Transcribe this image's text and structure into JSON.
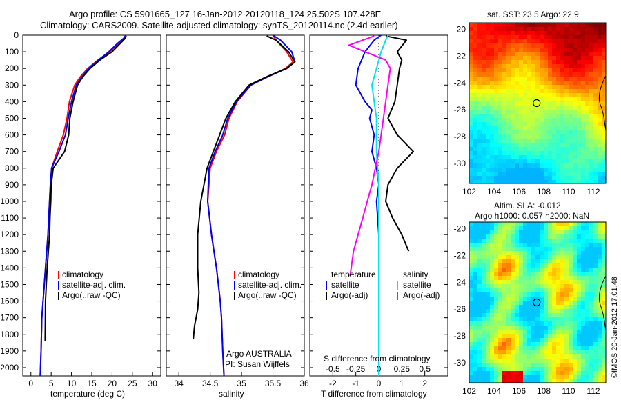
{
  "header": {
    "line1": "Argo profile: CS 5901665_127 16-Jan-2012 20120118_124 25.502S 107.428E",
    "line2": "Climatology: CARS2009. Satellite-adjusted climatology: synTS_20120114.nc (2.4d earlier)"
  },
  "side_stamp": "©IMOS 20-Jan-2012 17:01:48",
  "colors": {
    "clim": "#ff0000",
    "sat": "#0000ff",
    "argo": "#000000",
    "sat_s": "#00e5ee",
    "argo_s": "#ff00ff"
  },
  "chart_data": [
    {
      "type": "line",
      "xlabel": "temperature (deg C)",
      "xlim": [
        -2,
        32
      ],
      "xticks": [
        "0",
        "5",
        "10",
        "15",
        "20",
        "25",
        "30"
      ],
      "ylim": [
        0,
        2050
      ],
      "yticks": [
        "0",
        "100",
        "200",
        "300",
        "400",
        "500",
        "600",
        "700",
        "800",
        "900",
        "1000",
        "1100",
        "1200",
        "1300",
        "1400",
        "1500",
        "1600",
        "1700",
        "1800",
        "1900",
        "2000"
      ],
      "y_reversed": true,
      "legend": [
        "climatology",
        "satellite-adj. clim.",
        "Argo(..raw -QC)"
      ],
      "series": [
        {
          "name": "climatology",
          "x": [
            23.3,
            23.0,
            21.6,
            19.4,
            16.5,
            14.0,
            12.2,
            10.8,
            9.5,
            8.9,
            8.0,
            6.5,
            5.1,
            4.8,
            4.6,
            4.4,
            4.2,
            3.9,
            3.6,
            3.3,
            3.0,
            2.7,
            2.5,
            2.3
          ],
          "y": [
            0,
            20,
            50,
            100,
            150,
            200,
            250,
            300,
            400,
            500,
            600,
            700,
            800,
            900,
            1000,
            1100,
            1200,
            1300,
            1400,
            1500,
            1600,
            1700,
            1900,
            2050
          ]
        },
        {
          "name": "satellite-adj. clim.",
          "x": [
            23.4,
            22.8,
            21.3,
            19.2,
            16.6,
            14.3,
            12.6,
            11.2,
            10.0,
            9.2,
            8.5,
            6.9,
            5.1,
            4.8,
            4.6,
            4.4,
            4.2,
            3.9,
            3.6,
            3.3,
            3.0,
            2.7,
            2.5,
            2.3
          ],
          "y": [
            0,
            20,
            50,
            100,
            150,
            200,
            250,
            300,
            400,
            500,
            600,
            700,
            800,
            900,
            1000,
            1100,
            1200,
            1300,
            1400,
            1500,
            1600,
            1700,
            1900,
            2050
          ]
        },
        {
          "name": "Argo(..raw -QC)",
          "x": [
            23.5,
            23.2,
            22.0,
            20.0,
            17.0,
            14.6,
            12.8,
            11.5,
            10.4,
            9.6,
            9.3,
            8.3,
            5.5,
            5.0,
            4.9,
            4.7,
            4.6,
            4.3,
            4.0,
            3.8,
            3.6,
            3.5
          ],
          "y": [
            5,
            20,
            50,
            100,
            150,
            200,
            250,
            300,
            400,
            500,
            600,
            700,
            800,
            900,
            1000,
            1100,
            1200,
            1300,
            1400,
            1500,
            1600,
            1840
          ]
        }
      ]
    },
    {
      "type": "line",
      "xlabel": "salinity",
      "xlim": [
        33.8,
        36.0
      ],
      "xticks": [
        "34",
        "34.5",
        "35",
        "35.5",
        "36"
      ],
      "ylim": [
        0,
        2050
      ],
      "y_reversed": true,
      "legend": [
        "climatology",
        "satellite-adj. clim.",
        "Argo(..raw -QC)"
      ],
      "annotations": [
        "Argo AUSTRALIA",
        "PI: Susan Wijffels"
      ],
      "series": [
        {
          "name": "climatology",
          "x": [
            35.5,
            35.55,
            35.72,
            35.82,
            35.7,
            35.42,
            35.15,
            34.93,
            34.8,
            34.73,
            34.6,
            34.5,
            34.46,
            34.52,
            34.56,
            34.6,
            34.63,
            34.66,
            34.68,
            34.7,
            34.72
          ],
          "y": [
            0,
            30,
            100,
            160,
            200,
            250,
            300,
            400,
            500,
            600,
            700,
            800,
            1000,
            1200,
            1300,
            1400,
            1500,
            1600,
            1700,
            1900,
            2050
          ]
        },
        {
          "name": "satellite-adj. clim.",
          "x": [
            35.5,
            35.62,
            35.8,
            35.85,
            35.72,
            35.42,
            35.15,
            34.92,
            34.78,
            34.7,
            34.58,
            34.48,
            34.46,
            34.52,
            34.56,
            34.6,
            34.63,
            34.66,
            34.68,
            34.7,
            34.72
          ],
          "y": [
            0,
            30,
            100,
            160,
            200,
            250,
            300,
            400,
            500,
            600,
            700,
            800,
            1000,
            1200,
            1300,
            1400,
            1500,
            1600,
            1700,
            1900,
            2050
          ]
        },
        {
          "name": "Argo(..raw -QC)",
          "x": [
            35.4,
            35.55,
            35.75,
            35.85,
            35.72,
            35.4,
            35.12,
            34.9,
            34.75,
            34.65,
            34.55,
            34.45,
            34.35,
            34.3,
            34.3,
            34.32,
            34.3,
            34.25,
            34.23
          ],
          "y": [
            5,
            30,
            100,
            160,
            200,
            250,
            300,
            400,
            500,
            600,
            700,
            800,
            1000,
            1200,
            1400,
            1550,
            1650,
            1750,
            1830
          ]
        }
      ]
    },
    {
      "type": "line",
      "xlabel": "T difference from climatology",
      "xlabel_top": "S difference from climatology",
      "xlim": [
        -3,
        3
      ],
      "xticks": [
        "-2",
        "-1",
        "0",
        "1",
        "2"
      ],
      "xticks_top": [
        "-0.5",
        "-0.25",
        "0",
        "0.25",
        "0.5"
      ],
      "ylim": [
        0,
        2050
      ],
      "y_reversed": true,
      "legend_left_title": "temperature",
      "legend_right_title": "salinity",
      "legend": [
        "satellite",
        "Argo(-adj)",
        "satellite",
        "Argo(-adj)"
      ],
      "series": [
        {
          "name": "temperature satellite",
          "x": [
            0.1,
            -0.2,
            -0.6,
            -0.9,
            -1.0,
            -0.6,
            -0.3,
            -0.4,
            -0.2,
            -0.3,
            -0.1,
            0.0,
            -0.1,
            0.0,
            0.0,
            0.0,
            0.0,
            0.0,
            0.0
          ],
          "y": [
            0,
            30,
            100,
            200,
            300,
            400,
            450,
            500,
            600,
            700,
            800,
            900,
            1000,
            1200,
            1400,
            1600,
            1800,
            1950,
            2050
          ]
        },
        {
          "name": "temperature Argo(-adj)",
          "x": [
            0.3,
            1.2,
            0.8,
            1.0,
            0.9,
            0.8,
            0.7,
            0.4,
            0.8,
            1.5,
            0.8,
            0.4,
            0.3,
            0.6,
            1.0,
            1.3
          ],
          "y": [
            5,
            30,
            100,
            150,
            200,
            300,
            400,
            500,
            600,
            700,
            800,
            900,
            1000,
            1100,
            1200,
            1300
          ]
        },
        {
          "name": "salinity satellite",
          "x": [
            0.4,
            0.3,
            0.1,
            -0.1,
            -0.3,
            -0.2,
            -0.1,
            -0.1,
            -0.1,
            -0.05,
            0.0,
            0.0,
            0.0,
            0.0,
            0.0
          ],
          "y": [
            0,
            30,
            100,
            200,
            300,
            400,
            500,
            600,
            700,
            800,
            900,
            1100,
            1300,
            1600,
            2050
          ]
        },
        {
          "name": "salinity Argo(-adj)",
          "x": [
            -0.2,
            -1.3,
            -0.6,
            0.3,
            0.5,
            0.4,
            0.2,
            0.0,
            -0.3,
            -0.5,
            -0.7,
            -0.9,
            -1.1,
            -1.2,
            -1.25
          ],
          "y": [
            5,
            60,
            100,
            150,
            200,
            300,
            500,
            700,
            900,
            1000,
            1100,
            1200,
            1300,
            1400,
            1450
          ]
        }
      ]
    },
    {
      "type": "heatmap",
      "title": "sat. SST: 23.5  Argo: 22.9",
      "xlim": [
        102,
        113
      ],
      "ylim": [
        -31.5,
        -19.5
      ],
      "xticks": [
        "102",
        "104",
        "106",
        "108",
        "110",
        "112"
      ],
      "yticks": [
        "-20",
        "-22",
        "-24",
        "-26",
        "-28",
        "-30"
      ],
      "marker": [
        107.43,
        -25.5
      ]
    },
    {
      "type": "heatmap",
      "title_line1": "Altim. SLA: -0.012",
      "title_line2": "Argo h1000: 0.057 h2000: NaN",
      "xlim": [
        102,
        113
      ],
      "ylim": [
        -31.5,
        -19.5
      ],
      "xticks": [
        "102",
        "104",
        "106",
        "108",
        "110",
        "112"
      ],
      "yticks": [
        "-20",
        "-22",
        "-24",
        "-26",
        "-28",
        "-30"
      ],
      "marker": [
        107.43,
        -25.5
      ]
    }
  ]
}
